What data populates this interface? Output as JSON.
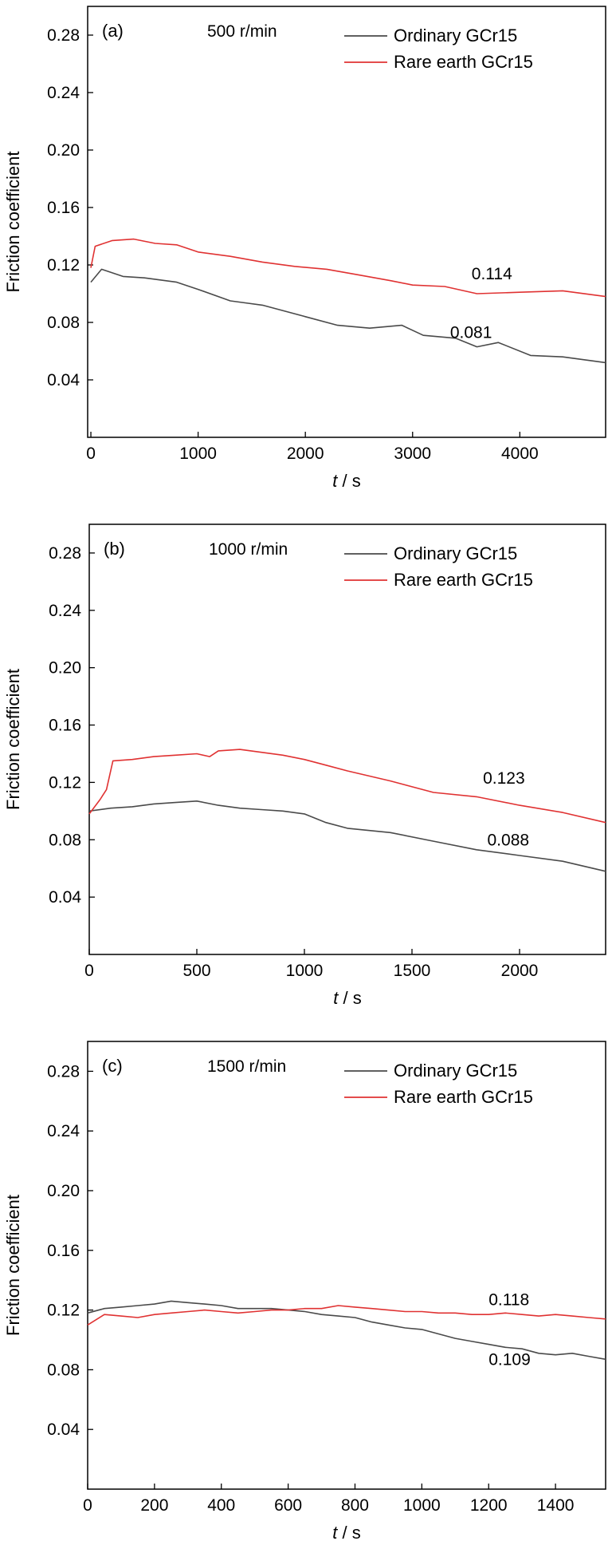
{
  "figure": {
    "colors": {
      "ordinary": "#4a4a4a",
      "rare": "#e03232",
      "axis": "#000000"
    }
  },
  "chart_data": [
    {
      "type": "line",
      "panel_label": "(a)",
      "condition": "500 r/min",
      "xlabel_italic": "t",
      "xlabel_unit": " / s",
      "ylabel": "Friction coefficient",
      "xlim": [
        -30,
        4800
      ],
      "ylim": [
        0.0,
        0.3
      ],
      "xticks": [
        0,
        1000,
        2000,
        3000,
        4000
      ],
      "yticks": [
        0.04,
        0.08,
        0.12,
        0.16,
        0.2,
        0.24,
        0.28
      ],
      "ytick_labels": [
        "0.04",
        "0.08",
        "0.12",
        "0.16",
        "0.20",
        "0.24",
        "0.28"
      ],
      "legend_position": "top-right",
      "series": [
        {
          "name": "Ordinary GCr15",
          "color": "#4a4a4a",
          "x": [
            0,
            100,
            300,
            500,
            800,
            1000,
            1300,
            1600,
            2000,
            2300,
            2600,
            2900,
            3100,
            3400,
            3600,
            3800,
            4100,
            4400,
            4800
          ],
          "values": [
            0.108,
            0.117,
            0.112,
            0.111,
            0.108,
            0.103,
            0.095,
            0.092,
            0.084,
            0.078,
            0.076,
            0.078,
            0.071,
            0.069,
            0.063,
            0.066,
            0.057,
            0.056,
            0.052
          ]
        },
        {
          "name": "Rare earth GCr15",
          "color": "#e03232",
          "x": [
            0,
            40,
            200,
            400,
            600,
            800,
            1000,
            1300,
            1600,
            1900,
            2200,
            2500,
            2800,
            3000,
            3300,
            3600,
            4000,
            4400,
            4800
          ],
          "values": [
            0.118,
            0.133,
            0.137,
            0.138,
            0.135,
            0.134,
            0.129,
            0.126,
            0.122,
            0.119,
            0.117,
            0.113,
            0.109,
            0.106,
            0.105,
            0.1,
            0.101,
            0.102,
            0.098
          ]
        }
      ],
      "annotations": [
        {
          "text": "0.114",
          "x": 3550,
          "y": 0.114
        },
        {
          "text": "0.081",
          "x": 3350,
          "y": 0.073
        }
      ]
    },
    {
      "type": "line",
      "panel_label": "(b)",
      "condition": "1000 r/min",
      "xlabel_italic": "t",
      "xlabel_unit": " / s",
      "ylabel": "Friction coefficient",
      "xlim": [
        0,
        2400
      ],
      "ylim": [
        0.0,
        0.3
      ],
      "xticks": [
        0,
        500,
        1000,
        1500,
        2000
      ],
      "yticks": [
        0.04,
        0.08,
        0.12,
        0.16,
        0.2,
        0.24,
        0.28
      ],
      "ytick_labels": [
        "0.04",
        "0.08",
        "0.12",
        "0.16",
        "0.20",
        "0.24",
        "0.28"
      ],
      "legend_position": "top-right",
      "series": [
        {
          "name": "Ordinary GCr15",
          "color": "#4a4a4a",
          "x": [
            0,
            100,
            200,
            300,
            400,
            500,
            600,
            700,
            800,
            900,
            1000,
            1100,
            1200,
            1400,
            1600,
            1800,
            2000,
            2200,
            2400
          ],
          "values": [
            0.1,
            0.102,
            0.103,
            0.105,
            0.106,
            0.107,
            0.104,
            0.102,
            0.101,
            0.1,
            0.098,
            0.092,
            0.088,
            0.085,
            0.079,
            0.073,
            0.069,
            0.065,
            0.058
          ]
        },
        {
          "name": "Rare earth GCr15",
          "color": "#e03232",
          "x": [
            0,
            50,
            80,
            110,
            200,
            300,
            400,
            500,
            560,
            600,
            700,
            800,
            900,
            1000,
            1100,
            1200,
            1400,
            1600,
            1800,
            2000,
            2200,
            2400
          ],
          "values": [
            0.098,
            0.108,
            0.115,
            0.135,
            0.136,
            0.138,
            0.139,
            0.14,
            0.138,
            0.142,
            0.143,
            0.141,
            0.139,
            0.136,
            0.132,
            0.128,
            0.121,
            0.113,
            0.11,
            0.104,
            0.099,
            0.092
          ]
        }
      ],
      "annotations": [
        {
          "text": "0.123",
          "x": 1830,
          "y": 0.123
        },
        {
          "text": "0.088",
          "x": 1850,
          "y": 0.08
        }
      ]
    },
    {
      "type": "line",
      "panel_label": "(c)",
      "condition": "1500 r/min",
      "xlabel_italic": "t",
      "xlabel_unit": " / s",
      "ylabel": "Friction coefficient",
      "xlim": [
        0,
        1550
      ],
      "ylim": [
        0.0,
        0.3
      ],
      "xticks": [
        0,
        200,
        400,
        600,
        800,
        1000,
        1200,
        1400
      ],
      "yticks": [
        0.04,
        0.08,
        0.12,
        0.16,
        0.2,
        0.24,
        0.28
      ],
      "ytick_labels": [
        "0.04",
        "0.08",
        "0.12",
        "0.16",
        "0.20",
        "0.24",
        "0.28"
      ],
      "legend_position": "top-right",
      "series": [
        {
          "name": "Ordinary GCr15",
          "color": "#4a4a4a",
          "x": [
            0,
            50,
            100,
            150,
            200,
            250,
            300,
            350,
            400,
            450,
            500,
            550,
            600,
            650,
            700,
            750,
            800,
            850,
            900,
            950,
            1000,
            1050,
            1100,
            1150,
            1200,
            1250,
            1300,
            1350,
            1400,
            1450,
            1500,
            1550
          ],
          "values": [
            0.118,
            0.121,
            0.122,
            0.123,
            0.124,
            0.126,
            0.125,
            0.124,
            0.123,
            0.121,
            0.121,
            0.121,
            0.12,
            0.119,
            0.117,
            0.116,
            0.115,
            0.112,
            0.11,
            0.108,
            0.107,
            0.104,
            0.101,
            0.099,
            0.097,
            0.095,
            0.094,
            0.091,
            0.09,
            0.091,
            0.089,
            0.087
          ]
        },
        {
          "name": "Rare earth GCr15",
          "color": "#e03232",
          "x": [
            0,
            50,
            100,
            150,
            200,
            250,
            300,
            350,
            400,
            450,
            500,
            550,
            600,
            650,
            700,
            750,
            800,
            850,
            900,
            950,
            1000,
            1050,
            1100,
            1150,
            1200,
            1250,
            1300,
            1350,
            1400,
            1450,
            1500,
            1550
          ],
          "values": [
            0.11,
            0.117,
            0.116,
            0.115,
            0.117,
            0.118,
            0.119,
            0.12,
            0.119,
            0.118,
            0.119,
            0.12,
            0.12,
            0.121,
            0.121,
            0.123,
            0.122,
            0.121,
            0.12,
            0.119,
            0.119,
            0.118,
            0.118,
            0.117,
            0.117,
            0.118,
            0.117,
            0.116,
            0.117,
            0.116,
            0.115,
            0.114
          ]
        }
      ],
      "annotations": [
        {
          "text": "0.118",
          "x": 1200,
          "y": 0.127
        },
        {
          "text": "0.109",
          "x": 1200,
          "y": 0.087
        }
      ]
    }
  ]
}
